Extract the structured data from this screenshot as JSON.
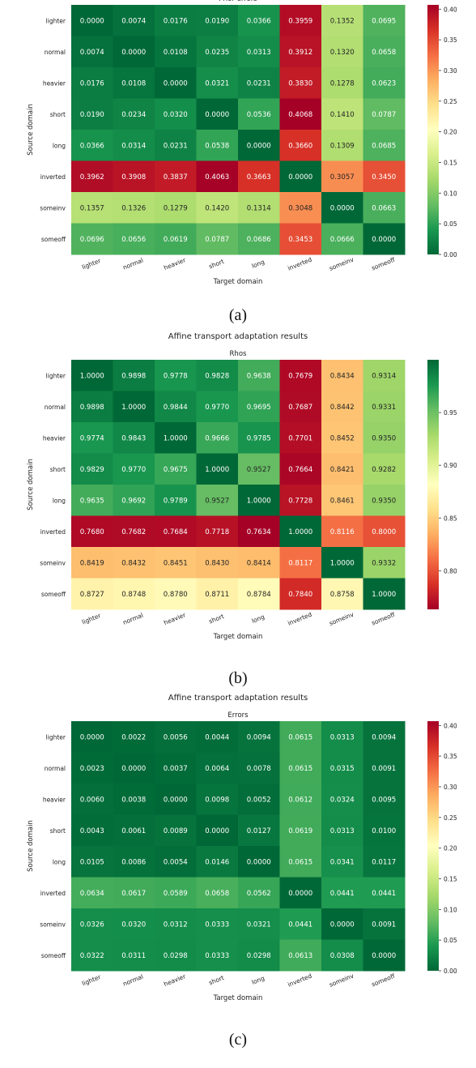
{
  "panels": [
    {
      "caption": "(a)",
      "suptitle": "",
      "chart_data": {
        "type": "heatmap",
        "title": "Prior errors",
        "xlabel": "Target domain",
        "ylabel": "Source domain",
        "x_categories": [
          "lighter",
          "normal",
          "heavier",
          "short",
          "long",
          "inverted",
          "someinv",
          "someoff"
        ],
        "y_categories": [
          "lighter",
          "normal",
          "heavier",
          "short",
          "long",
          "inverted",
          "someinv",
          "someoff"
        ],
        "values": [
          [
            0.0,
            0.0074,
            0.0176,
            0.019,
            0.0366,
            0.3959,
            0.1352,
            0.0695
          ],
          [
            0.0074,
            0.0,
            0.0108,
            0.0235,
            0.0313,
            0.3912,
            0.132,
            0.0658
          ],
          [
            0.0176,
            0.0108,
            0.0,
            0.0321,
            0.0231,
            0.383,
            0.1278,
            0.0623
          ],
          [
            0.019,
            0.0234,
            0.032,
            0.0,
            0.0536,
            0.4068,
            0.141,
            0.0787
          ],
          [
            0.0366,
            0.0314,
            0.0231,
            0.0538,
            0.0,
            0.366,
            0.1309,
            0.0685
          ],
          [
            0.3962,
            0.3908,
            0.3837,
            0.4063,
            0.3663,
            0.0,
            0.3057,
            0.345
          ],
          [
            0.1357,
            0.1326,
            0.1279,
            0.142,
            0.1314,
            0.3048,
            0.0,
            0.0663
          ],
          [
            0.0696,
            0.0656,
            0.0619,
            0.0787,
            0.0686,
            0.3453,
            0.0666,
            0.0
          ]
        ],
        "colormap": "RdYlGn_r",
        "vmin": 0.0,
        "vmax": 0.407,
        "colorbar_ticks": [
          0.0,
          0.05,
          0.1,
          0.15,
          0.2,
          0.25,
          0.3,
          0.35,
          0.4
        ],
        "colorbar_tick_labels": [
          "0.00",
          "0.05",
          "0.10",
          "0.15",
          "0.20",
          "0.25",
          "0.30",
          "0.35",
          "0.40"
        ]
      }
    },
    {
      "caption": "(b)",
      "suptitle": "Affine transport adaptation results",
      "chart_data": {
        "type": "heatmap",
        "title": "Rhos",
        "xlabel": "Target domain",
        "ylabel": "Source domain",
        "x_categories": [
          "lighter",
          "normal",
          "heavier",
          "short",
          "long",
          "inverted",
          "someinv",
          "someoff"
        ],
        "y_categories": [
          "lighter",
          "normal",
          "heavier",
          "short",
          "long",
          "inverted",
          "someinv",
          "someoff"
        ],
        "values": [
          [
            1.0,
            0.9898,
            0.9778,
            0.9828,
            0.9638,
            0.7679,
            0.8434,
            0.9314
          ],
          [
            0.9898,
            1.0,
            0.9844,
            0.977,
            0.9695,
            0.7687,
            0.8442,
            0.9331
          ],
          [
            0.9774,
            0.9843,
            1.0,
            0.9666,
            0.9785,
            0.7701,
            0.8452,
            0.935
          ],
          [
            0.9829,
            0.977,
            0.9675,
            1.0,
            0.9527,
            0.7664,
            0.8421,
            0.9282
          ],
          [
            0.9635,
            0.9692,
            0.9789,
            0.9527,
            1.0,
            0.7728,
            0.8461,
            0.935
          ],
          [
            0.768,
            0.7682,
            0.7684,
            0.7718,
            0.7634,
            1.0,
            0.8116,
            0.8
          ],
          [
            0.8419,
            0.8432,
            0.8451,
            0.843,
            0.8414,
            0.8117,
            1.0,
            0.9332
          ],
          [
            0.8727,
            0.8748,
            0.878,
            0.8711,
            0.8784,
            0.784,
            0.8758,
            1.0
          ]
        ],
        "colormap": "RdYlGn",
        "vmin": 0.7634,
        "vmax": 1.0,
        "colorbar_ticks": [
          0.8,
          0.85,
          0.9,
          0.95
        ],
        "colorbar_tick_labels": [
          "0.80",
          "0.85",
          "0.90",
          "0.95"
        ]
      }
    },
    {
      "caption": "(c)",
      "suptitle": "Affine transport adaptation results",
      "chart_data": {
        "type": "heatmap",
        "title": "Errors",
        "xlabel": "Target domain",
        "ylabel": "Source domain",
        "x_categories": [
          "lighter",
          "normal",
          "heavier",
          "short",
          "long",
          "inverted",
          "someinv",
          "someoff"
        ],
        "y_categories": [
          "lighter",
          "normal",
          "heavier",
          "short",
          "long",
          "inverted",
          "someinv",
          "someoff"
        ],
        "values": [
          [
            0.0,
            0.0022,
            0.0056,
            0.0044,
            0.0094,
            0.0615,
            0.0313,
            0.0094
          ],
          [
            0.0023,
            0.0,
            0.0037,
            0.0064,
            0.0078,
            0.0615,
            0.0315,
            0.0091
          ],
          [
            0.006,
            0.0038,
            0.0,
            0.0098,
            0.0052,
            0.0612,
            0.0324,
            0.0095
          ],
          [
            0.0043,
            0.0061,
            0.0089,
            0.0,
            0.0127,
            0.0619,
            0.0313,
            0.01
          ],
          [
            0.0105,
            0.0086,
            0.0054,
            0.0146,
            0.0,
            0.0615,
            0.0341,
            0.0117
          ],
          [
            0.0634,
            0.0617,
            0.0589,
            0.0658,
            0.0562,
            0.0,
            0.0441,
            0.0441
          ],
          [
            0.0326,
            0.032,
            0.0312,
            0.0333,
            0.0321,
            0.0441,
            0.0,
            0.0091
          ],
          [
            0.0322,
            0.0311,
            0.0298,
            0.0333,
            0.0298,
            0.0613,
            0.0308,
            0.0
          ]
        ],
        "colormap": "RdYlGn_r",
        "vmin": 0.0,
        "vmax": 0.407,
        "colorbar_ticks": [
          0.0,
          0.05,
          0.1,
          0.15,
          0.2,
          0.25,
          0.3,
          0.35,
          0.4
        ],
        "colorbar_tick_labels": [
          "0.00",
          "0.05",
          "0.10",
          "0.15",
          "0.20",
          "0.25",
          "0.30",
          "0.35",
          "0.40"
        ]
      }
    }
  ]
}
